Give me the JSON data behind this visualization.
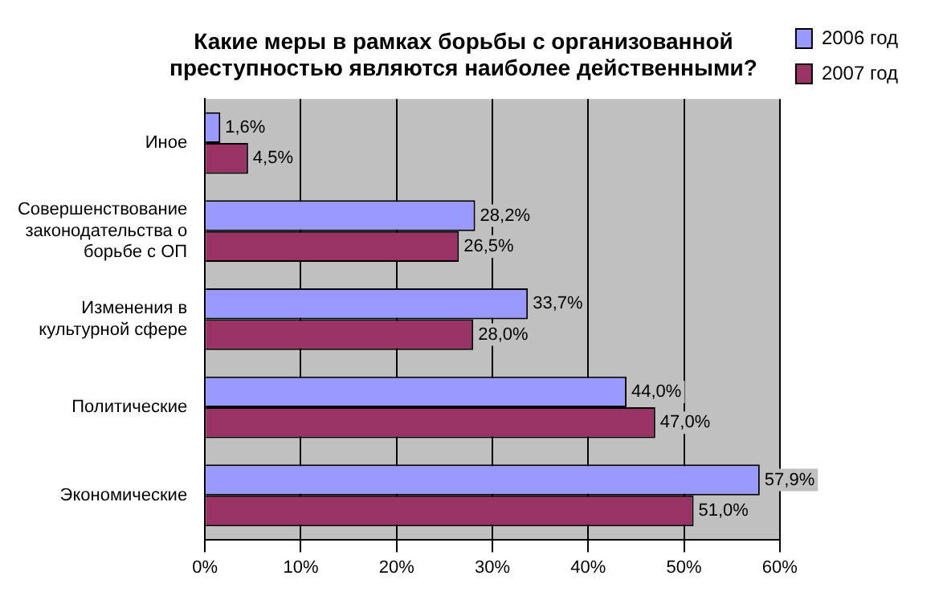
{
  "chart_data": {
    "type": "bar",
    "orientation": "horizontal",
    "title": "Какие меры в рамках борьбы с организованной преступностью являются наиболее действенными?",
    "categories": [
      "Иное",
      "Совершенствование законодательства о борьбе с ОП",
      "Изменения в культурной сфере",
      "Политические",
      "Экономические"
    ],
    "series": [
      {
        "name": "2006 год",
        "color": "#9999ff",
        "values": [
          1.6,
          28.2,
          33.7,
          44.0,
          57.9
        ],
        "value_labels": [
          "1,6%",
          "28,2%",
          "33,7%",
          "44,0%",
          "57,9%"
        ]
      },
      {
        "name": "2007 год",
        "color": "#993366",
        "values": [
          4.5,
          26.5,
          28.0,
          47.0,
          51.0
        ],
        "value_labels": [
          "4,5%",
          "26,5%",
          "28,0%",
          "47,0%",
          "51,0%"
        ]
      }
    ],
    "xlim": [
      0,
      60
    ],
    "xticks": [
      {
        "value": 0,
        "label": "0%"
      },
      {
        "value": 10,
        "label": "10%"
      },
      {
        "value": 20,
        "label": "20%"
      },
      {
        "value": 30,
        "label": "30%"
      },
      {
        "value": 40,
        "label": "40%"
      },
      {
        "value": 50,
        "label": "50%"
      },
      {
        "value": 60,
        "label": "60%"
      }
    ],
    "grid": "x",
    "legend": "top right"
  }
}
